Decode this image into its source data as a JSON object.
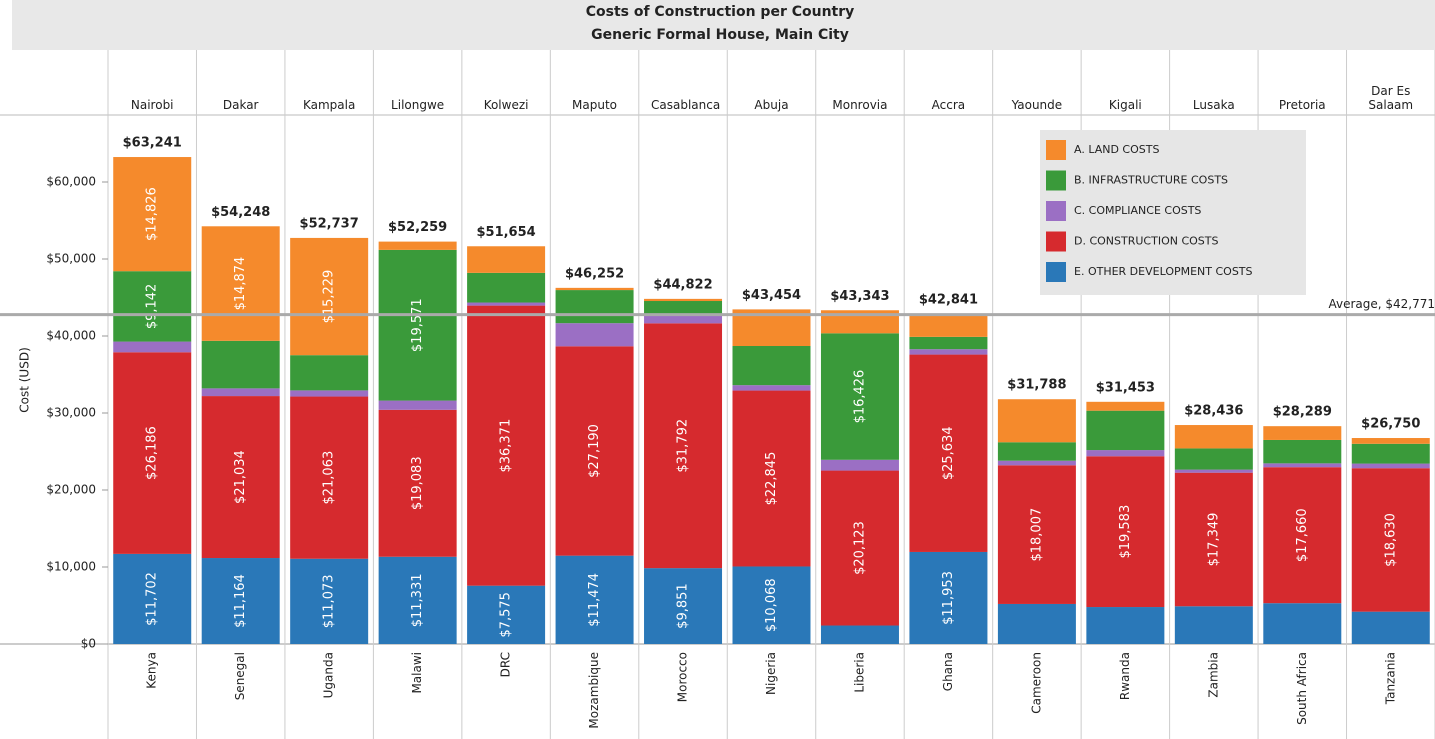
{
  "chart_data": {
    "type": "stacked-bar",
    "title": "Costs of Construction per Country",
    "subtitle": "Generic Formal House, Main City",
    "y_label": "Cost (USD)",
    "cities": [
      "Nairobi",
      "Dakar",
      "Kampala",
      "Lilongwe",
      "Kolwezi",
      "Maputo",
      "Casablanca",
      "Abuja",
      "Monrovia",
      "Accra",
      "Yaounde",
      "Kigali",
      "Lusaka",
      "Pretoria",
      "Dar Es Salaam"
    ],
    "categories": [
      "Kenya",
      "Senegal",
      "Uganda",
      "Malawi",
      "DRC",
      "Mozambique",
      "Morocco",
      "Nigeria",
      "Liberia",
      "Ghana",
      "Cameroon",
      "Rwanda",
      "Zambia",
      "South Africa",
      "Tanzania"
    ],
    "series": [
      {
        "name": "E. OTHER DEVELOPMENT COSTS",
        "color": "#2a78b8",
        "values": [
          11702,
          11164,
          11073,
          11331,
          7575,
          11474,
          9851,
          10068,
          2400,
          11953,
          5200,
          4800,
          4900,
          5300,
          4200
        ],
        "value_labels": [
          "$11,702",
          "$11,164",
          "$11,073",
          "$11,331",
          "$7,575",
          "$11,474",
          "$9,851",
          "$10,068",
          null,
          "$11,953",
          null,
          null,
          null,
          null,
          null
        ]
      },
      {
        "name": "D. CONSTRUCTION COSTS",
        "color": "#d62a2e",
        "values": [
          26186,
          21034,
          21063,
          19083,
          36371,
          27190,
          31792,
          22845,
          20123,
          25634,
          18007,
          19583,
          17349,
          17660,
          18630
        ],
        "value_labels": [
          "$26,186",
          "$21,034",
          "$21,063",
          "$19,083",
          "$36,371",
          "$27,190",
          "$31,792",
          "$22,845",
          "$20,123",
          "$25,634",
          "$18,007",
          "$19,583",
          "$17,349",
          "$17,660",
          "$18,630"
        ]
      },
      {
        "name": "C. COMPLIANCE COSTS",
        "color": "#9b6fc4",
        "values": [
          1385,
          1000,
          800,
          1200,
          400,
          3000,
          1000,
          700,
          1400,
          700,
          600,
          800,
          400,
          500,
          600
        ],
        "value_labels": [
          null,
          null,
          null,
          null,
          null,
          null,
          null,
          null,
          null,
          null,
          null,
          null,
          null,
          null,
          null
        ]
      },
      {
        "name": "B. INFRASTRUCTURE COSTS",
        "color": "#3a9a3a",
        "values": [
          9142,
          6176,
          4572,
          19571,
          3854,
          4300,
          1900,
          5087,
          16426,
          1600,
          2393,
          5117,
          2751,
          3040,
          2570
        ],
        "value_labels": [
          "$9,142",
          null,
          null,
          "$19,571",
          null,
          null,
          null,
          null,
          "$16,426",
          null,
          null,
          null,
          null,
          null,
          null
        ]
      },
      {
        "name": "A. LAND COSTS",
        "color": "#f58a2c",
        "values": [
          14826,
          14874,
          15229,
          1074,
          3454,
          288,
          279,
          4754,
          2994,
          2954,
          5588,
          1153,
          3036,
          1789,
          750
        ],
        "value_labels": [
          "$14,826",
          "$14,874",
          "$15,229",
          null,
          null,
          null,
          null,
          null,
          null,
          null,
          null,
          null,
          null,
          null,
          null
        ]
      }
    ],
    "totals": [
      63241,
      54248,
      52737,
      52259,
      51654,
      46252,
      44822,
      43454,
      43343,
      42841,
      31788,
      31453,
      28436,
      28289,
      26750
    ],
    "total_labels": [
      "$63,241",
      "$54,248",
      "$52,737",
      "$52,259",
      "$51,654",
      "$46,252",
      "$44,822",
      "$43,454",
      "$43,343",
      "$42,841",
      "$31,788",
      "$31,453",
      "$28,436",
      "$28,289",
      "$26,750"
    ],
    "average": {
      "value": 42771,
      "label": "Average, $42,771"
    },
    "ylim": [
      0,
      68700
    ],
    "yticks": [
      {
        "value": 0,
        "label": "$0"
      },
      {
        "value": 10000,
        "label": "$10,000"
      },
      {
        "value": 20000,
        "label": "$20,000"
      },
      {
        "value": 30000,
        "label": "$30,000"
      },
      {
        "value": 40000,
        "label": "$40,000"
      },
      {
        "value": 50000,
        "label": "$50,000"
      },
      {
        "value": 60000,
        "label": "$60,000"
      }
    ],
    "legend": "upper right"
  }
}
